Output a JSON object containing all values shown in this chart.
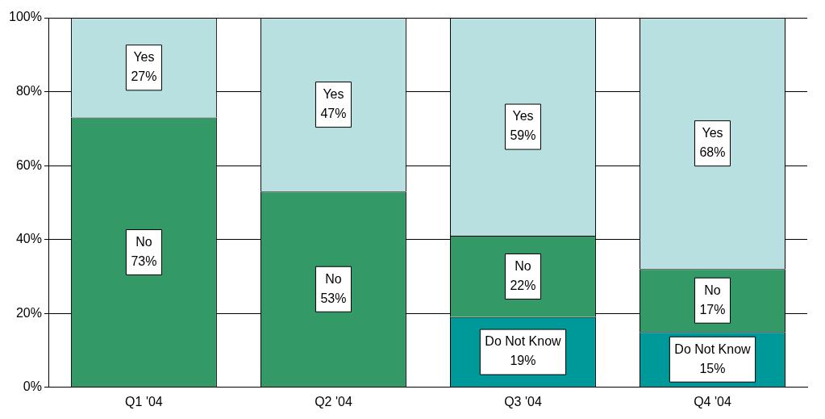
{
  "chart_data": {
    "type": "bar",
    "stacked": true,
    "categories": [
      "Q1 '04",
      "Q2 '04",
      "Q3 '04",
      "Q4 '04"
    ],
    "series": [
      {
        "name": "Do Not Know",
        "color": "#009999",
        "values": [
          null,
          null,
          19,
          15
        ],
        "value_labels": [
          null,
          null,
          "19%",
          "15%"
        ]
      },
      {
        "name": "No",
        "color": "#339966",
        "values": [
          73,
          53,
          22,
          17
        ],
        "value_labels": [
          "73%",
          "53%",
          "22%",
          "17%"
        ]
      },
      {
        "name": "Yes",
        "color": "#b8e0e0",
        "values": [
          27,
          47,
          59,
          68
        ],
        "value_labels": [
          "27%",
          "47%",
          "59%",
          "68%"
        ]
      }
    ],
    "ylim": [
      0,
      100
    ],
    "yticks": [
      {
        "value": 0,
        "label": "0%"
      },
      {
        "value": 20,
        "label": "20%"
      },
      {
        "value": 40,
        "label": "40%"
      },
      {
        "value": 60,
        "label": "60%"
      },
      {
        "value": 80,
        "label": "80%"
      },
      {
        "value": 100,
        "label": "100%"
      }
    ],
    "grid": "y",
    "legend": false
  }
}
